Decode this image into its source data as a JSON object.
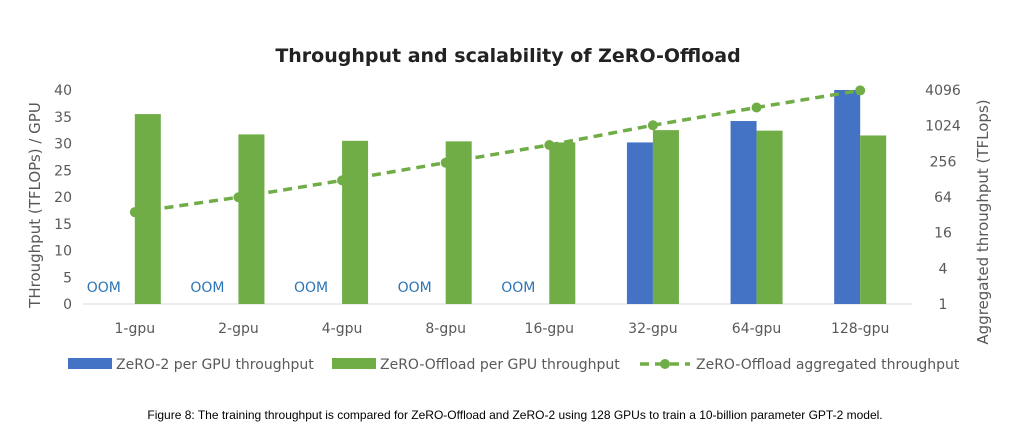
{
  "chart_data": {
    "type": "bar",
    "title": "Throughput and scalability of ZeRO-Offload",
    "categories": [
      "1-gpu",
      "2-gpu",
      "4-gpu",
      "8-gpu",
      "16-gpu",
      "32-gpu",
      "64-gpu",
      "128-gpu"
    ],
    "y_left": {
      "label": "THroughput (TFLOPs) / GPU",
      "ylim": [
        0,
        40
      ],
      "ticks": [
        "0",
        "5",
        "10",
        "15",
        "20",
        "25",
        "30",
        "35",
        "40"
      ]
    },
    "y_right": {
      "label": "Aggregated throughput (TFLops)",
      "scale": "log2",
      "ylim": [
        1,
        4096
      ],
      "ticks": [
        "1",
        "4",
        "16",
        "64",
        "256",
        "1024",
        "4096"
      ]
    },
    "series": [
      {
        "name": "ZeRO-2 per GPU throughput",
        "type": "bar",
        "axis": "left",
        "color": "#4472c4",
        "values": [
          null,
          null,
          null,
          null,
          null,
          30.2,
          34.2,
          40
        ],
        "missing_label": "OOM"
      },
      {
        "name": "ZeRO-Offload per GPU throughput",
        "type": "bar",
        "axis": "left",
        "color": "#70ad47",
        "values": [
          35.5,
          31.7,
          30.5,
          30.4,
          30.2,
          32.5,
          32.4,
          31.5
        ]
      },
      {
        "name": "ZeRO-Offload aggregated throughput",
        "type": "line",
        "axis": "right",
        "color": "#70ad47",
        "style": "dashed",
        "values": [
          35.5,
          63.4,
          122,
          243,
          483,
          1040,
          2074,
          4032
        ]
      }
    ],
    "grid": false,
    "legend_position": "bottom"
  },
  "caption": "Figure 8: The training throughput is compared for ZeRO-Offload and ZeRO-2 using 128 GPUs to train a 10-billion parameter GPT-2 model."
}
